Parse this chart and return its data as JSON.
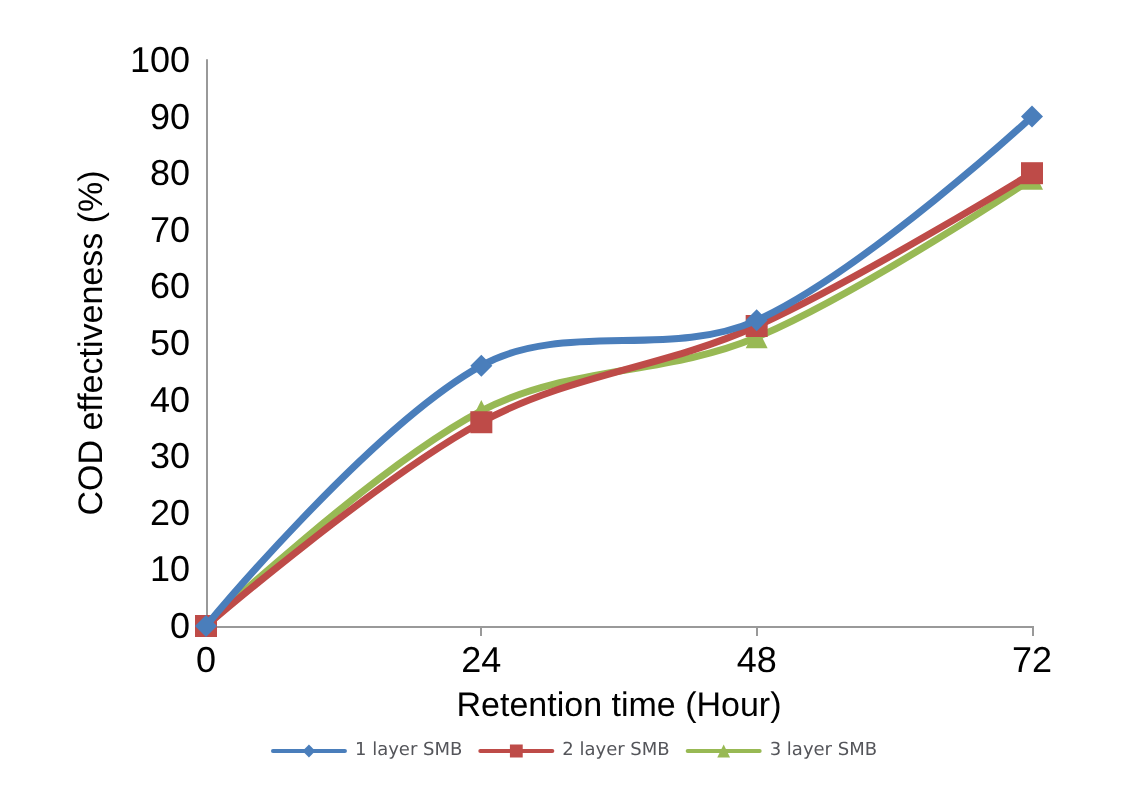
{
  "chart_data": {
    "type": "line",
    "xlabel": "Retention time (Hour)",
    "ylabel": "COD effectiveness (%)",
    "categories": [
      "0",
      "24",
      "48",
      "72"
    ],
    "series": [
      {
        "name": "1 layer SMB",
        "color": "#4a7ebb",
        "values": [
          0,
          46,
          54,
          90
        ],
        "marker": "diamond"
      },
      {
        "name": "2 layer SMB",
        "color": "#be4b48",
        "values": [
          0,
          36,
          53,
          80
        ],
        "marker": "square"
      },
      {
        "name": "3 layer SMB",
        "color": "#98b954",
        "values": [
          0,
          38,
          51,
          79
        ],
        "marker": "triangle"
      }
    ],
    "ylim": [
      0,
      100
    ],
    "yticks": [
      0,
      10,
      20,
      30,
      40,
      50,
      60,
      70,
      80,
      90,
      100
    ],
    "grid": false,
    "legend": "bottom",
    "line_style": "solid"
  }
}
